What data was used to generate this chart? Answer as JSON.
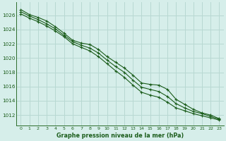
{
  "title": "Graphe pression niveau de la mer (hPa)",
  "bg_color": "#d6eeea",
  "grid_color": "#b8d8d2",
  "line_color": "#1a5c1a",
  "spine_color": "#2d6e2d",
  "x_ticks": [
    0,
    1,
    2,
    3,
    4,
    5,
    6,
    7,
    8,
    9,
    10,
    11,
    12,
    13,
    14,
    15,
    16,
    17,
    18,
    19,
    20,
    21,
    22,
    23
  ],
  "y_ticks": [
    1012,
    1014,
    1016,
    1018,
    1020,
    1022,
    1024,
    1026
  ],
  "ylim": [
    1010.5,
    1027.8
  ],
  "xlim": [
    -0.5,
    23.5
  ],
  "series": [
    [
      1026.8,
      1026.1,
      1025.7,
      1025.2,
      1024.4,
      1023.5,
      1022.5,
      1022.1,
      1021.9,
      1021.2,
      1020.2,
      1019.4,
      1018.6,
      1017.6,
      1016.5,
      1016.3,
      1016.2,
      1015.6,
      1014.2,
      1013.5,
      1012.8,
      1012.3,
      1012.0,
      1011.5
    ],
    [
      1026.5,
      1025.9,
      1025.4,
      1024.8,
      1024.1,
      1023.2,
      1022.3,
      1021.8,
      1021.4,
      1020.7,
      1019.7,
      1018.8,
      1018.0,
      1016.9,
      1015.9,
      1015.6,
      1015.3,
      1014.6,
      1013.6,
      1013.0,
      1012.5,
      1012.2,
      1011.8,
      1011.4
    ],
    [
      1026.2,
      1025.6,
      1025.1,
      1024.5,
      1023.8,
      1023.0,
      1022.0,
      1021.5,
      1021.0,
      1020.2,
      1019.2,
      1018.2,
      1017.3,
      1016.2,
      1015.2,
      1014.8,
      1014.5,
      1013.8,
      1013.0,
      1012.6,
      1012.2,
      1011.9,
      1011.6,
      1011.3
    ]
  ]
}
